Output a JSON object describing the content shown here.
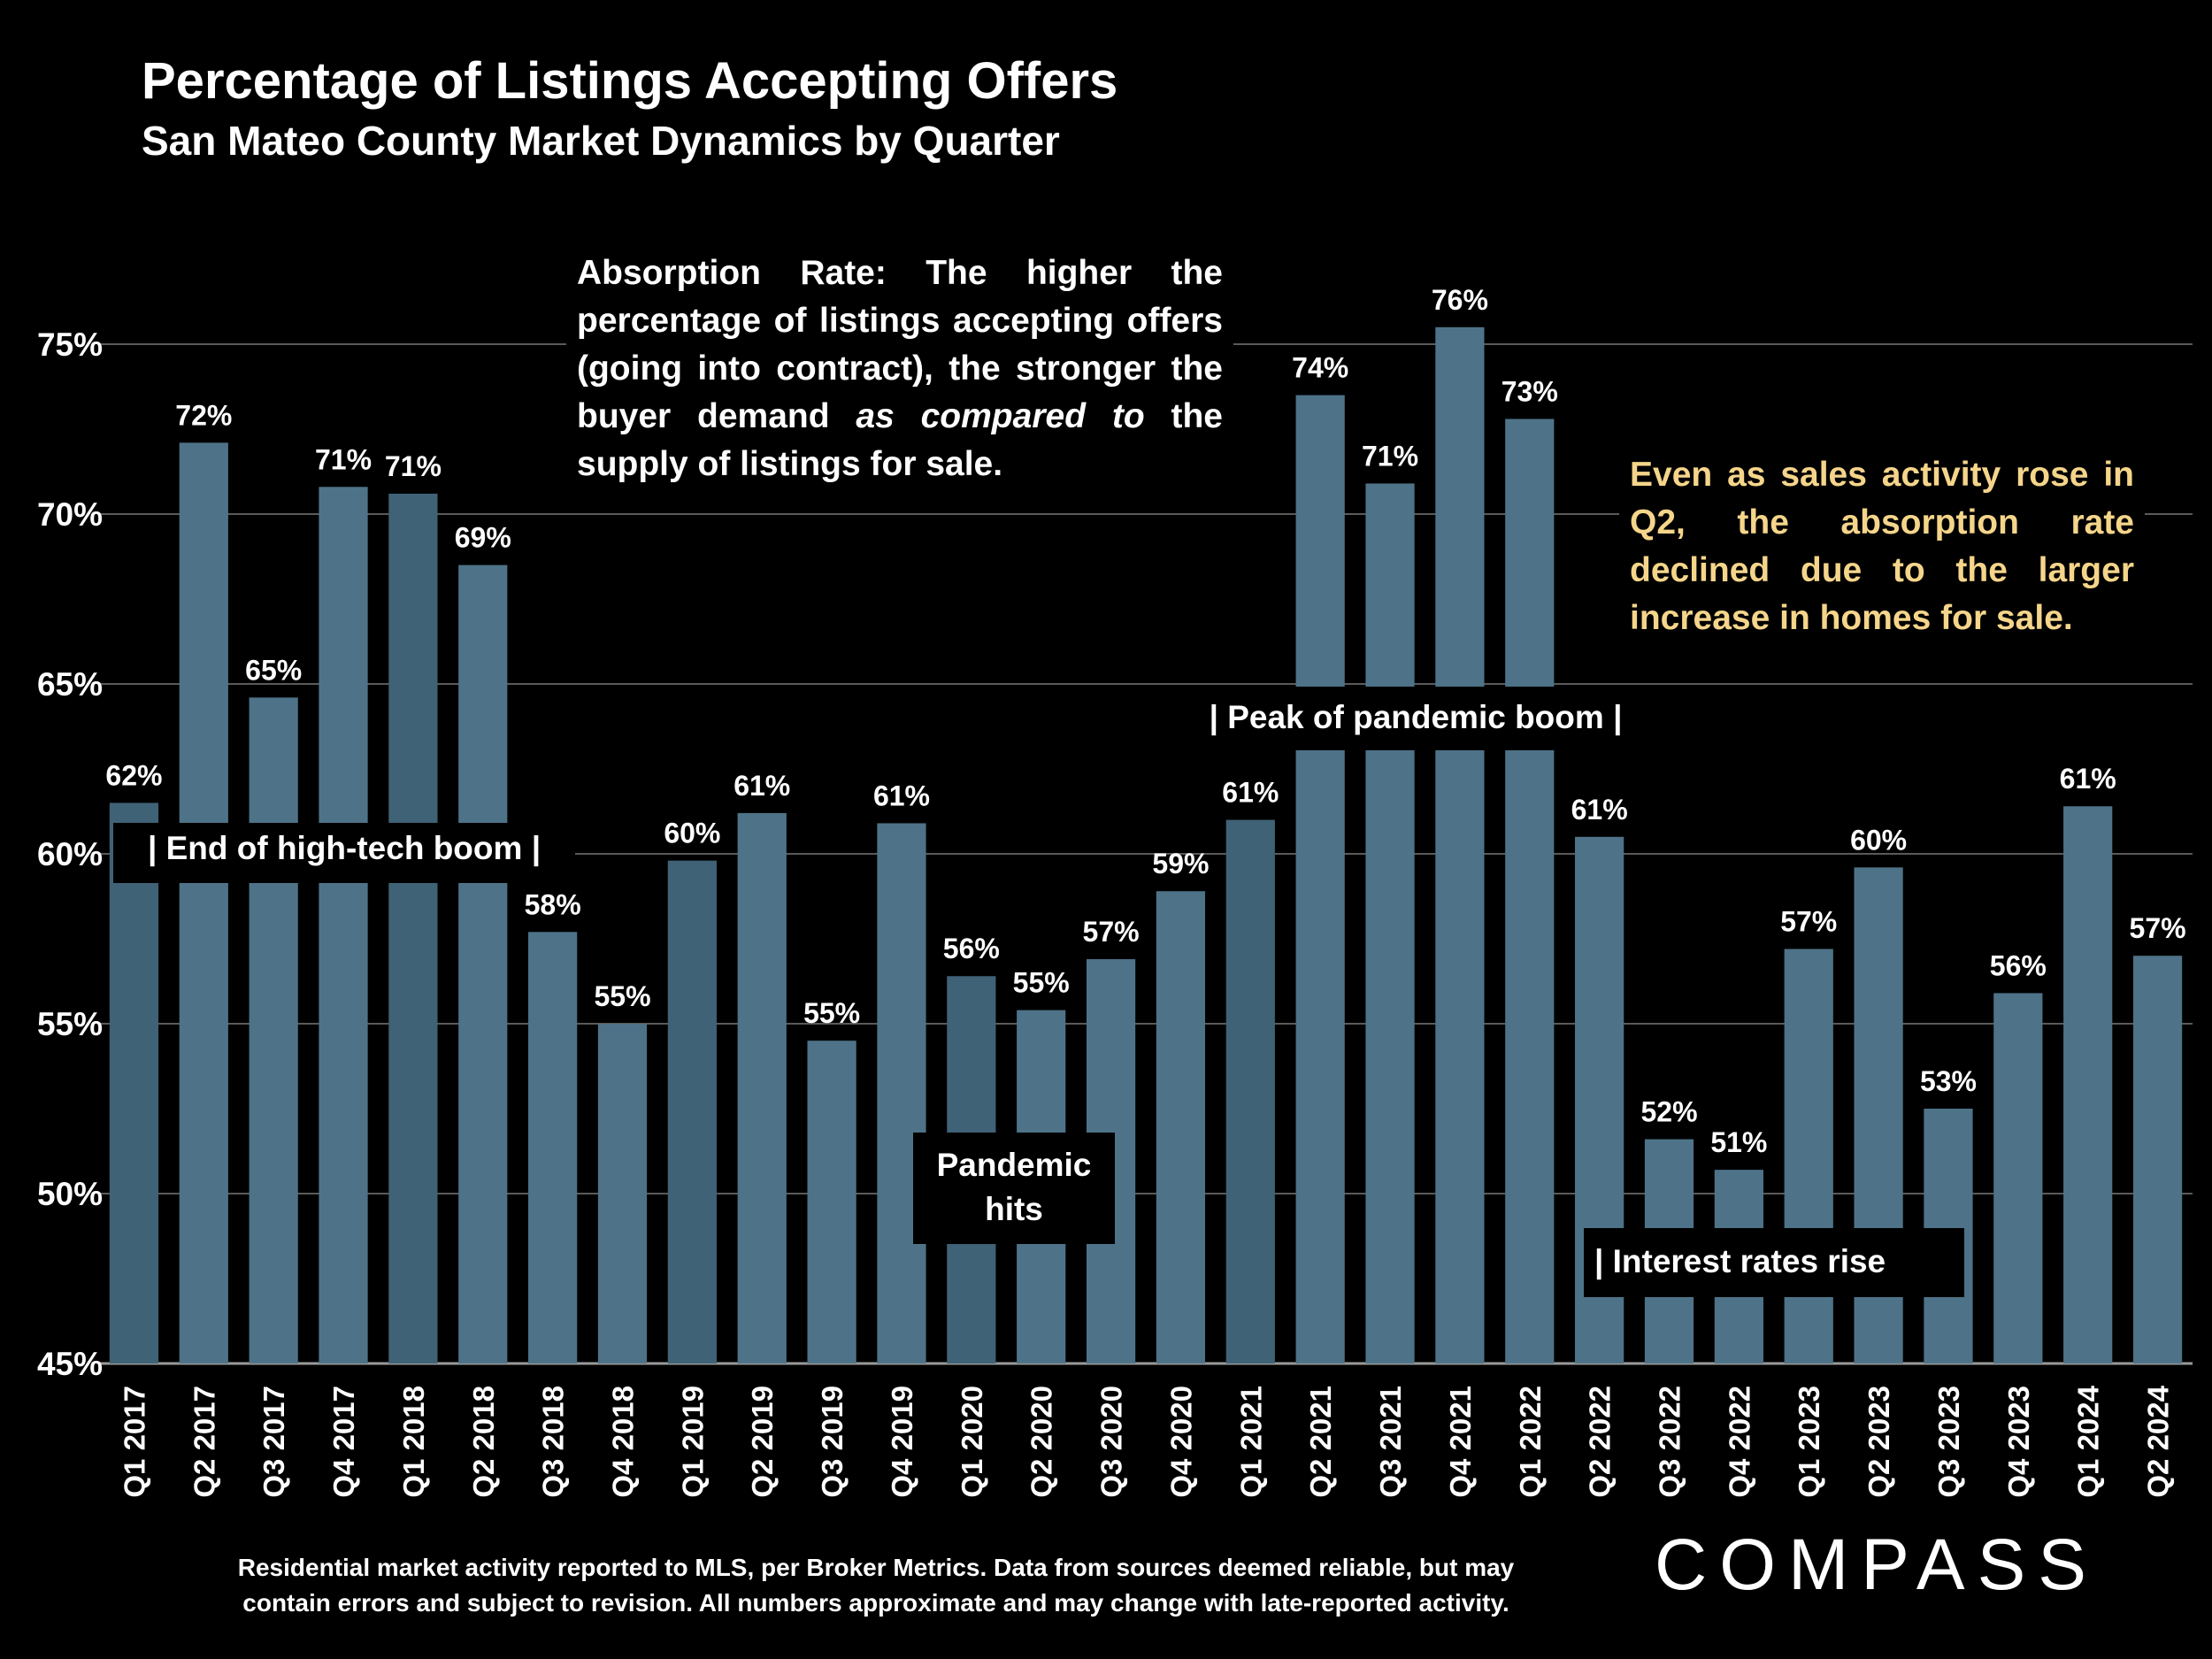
{
  "header": {
    "title": "Percentage of Listings Accepting Offers",
    "subtitle": "San Mateo County Market Dynamics by Quarter"
  },
  "notes": {
    "absorption_pre": "Absorption Rate: The higher the percentage of listings accepting offers (going into contract), the stronger the buyer demand ",
    "absorption_em": "as compared to",
    "absorption_post": " the supply of listings for sale.",
    "sales": "Even as sales activity rose in Q2, the absorption rate declined due to the larger increase in homes for sale."
  },
  "events": {
    "tech": "| End of high-tech boom |",
    "peak": "| Peak of pandemic boom |",
    "pandemic": "Pandemic hits",
    "rates": "| Interest rates rise"
  },
  "footer": {
    "line1": "Residential market activity reported to MLS, per Broker Metrics. Data from sources deemed reliable, but may",
    "line2": "contain errors and subject to revision. All numbers approximate and may change with late-reported activity.",
    "logo": "COMPASS"
  },
  "chart_data": {
    "type": "bar",
    "categories": [
      "Q1 2017",
      "Q2 2017",
      "Q3 2017",
      "Q4 2017",
      "Q1 2018",
      "Q2 2018",
      "Q3 2018",
      "Q4 2018",
      "Q1 2019",
      "Q2 2019",
      "Q3 2019",
      "Q4 2019",
      "Q1 2020",
      "Q2 2020",
      "Q3 2020",
      "Q4 2020",
      "Q1 2021",
      "Q2 2021",
      "Q3 2021",
      "Q4 2021",
      "Q1 2022",
      "Q2 2022",
      "Q3 2022",
      "Q4 2022",
      "Q1 2023",
      "Q2 2023",
      "Q3 2023",
      "Q4 2023",
      "Q1 2024",
      "Q2 2024"
    ],
    "values": [
      61.5,
      72.1,
      64.6,
      70.8,
      70.6,
      68.5,
      57.7,
      55.0,
      59.8,
      61.2,
      54.5,
      60.9,
      56.4,
      55.4,
      56.9,
      58.9,
      61.0,
      73.5,
      70.9,
      75.5,
      72.8,
      60.5,
      51.6,
      50.7,
      57.2,
      59.6,
      52.5,
      55.9,
      61.4,
      57.0
    ],
    "value_labels": [
      "62%",
      "72%",
      "65%",
      "71%",
      "71%",
      "69%",
      "58%",
      "55%",
      "60%",
      "61%",
      "55%",
      "61%",
      "56%",
      "55%",
      "57%",
      "59%",
      "61%",
      "74%",
      "71%",
      "76%",
      "73%",
      "61%",
      "52%",
      "51%",
      "57%",
      "60%",
      "53%",
      "56%",
      "61%",
      "57%"
    ],
    "highlighted": [
      true,
      false,
      false,
      false,
      true,
      false,
      false,
      false,
      true,
      false,
      false,
      false,
      true,
      false,
      false,
      false,
      true,
      false,
      false,
      false,
      false,
      false,
      false,
      false,
      false,
      false,
      false,
      false,
      false,
      false
    ],
    "yticks": [
      45,
      50,
      55,
      60,
      65,
      70,
      75
    ],
    "ytick_labels": [
      "45%",
      "50%",
      "55%",
      "60%",
      "65%",
      "70%",
      "75%"
    ],
    "ylim": [
      45,
      78
    ],
    "grid": true,
    "colors": {
      "bar": "#4e7388",
      "bar_highlight": "#3f6276",
      "grid": "#5a5a5a",
      "axis": "#9a9a9a"
    }
  }
}
